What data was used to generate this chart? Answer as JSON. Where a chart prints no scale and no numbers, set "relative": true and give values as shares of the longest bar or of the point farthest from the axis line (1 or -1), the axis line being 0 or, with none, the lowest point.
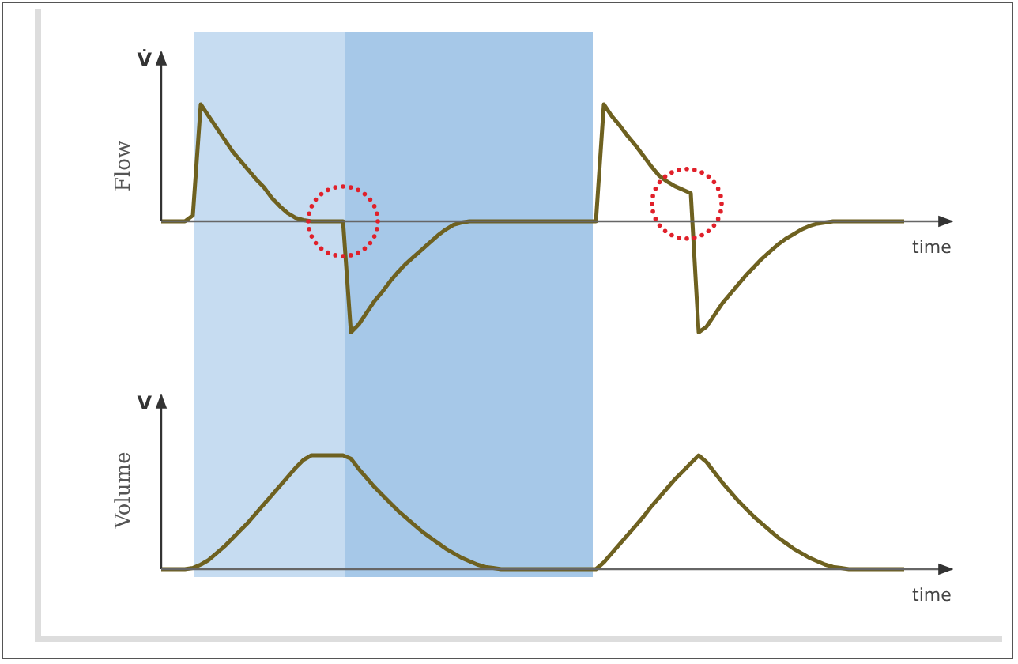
{
  "chart_data": [
    {
      "type": "line",
      "relative": true,
      "ylabel": "Flow",
      "xlabel": "time",
      "annotations": [
        "V̇"
      ],
      "tick_labels": false,
      "categories": [
        null,
        null,
        null,
        null,
        null,
        null,
        null,
        null,
        null,
        null,
        null,
        null,
        null,
        null,
        null,
        null,
        null,
        null,
        null,
        null,
        null,
        null,
        null,
        null,
        null,
        null,
        null,
        null,
        null,
        null,
        null,
        null,
        null,
        null,
        null,
        null,
        null,
        null,
        null,
        null,
        null,
        null,
        null,
        null,
        null,
        null,
        null,
        null,
        null,
        null,
        null,
        null,
        null,
        null,
        null,
        null,
        null,
        null,
        null,
        null,
        null,
        null,
        null,
        null,
        null,
        null,
        null,
        null,
        null,
        null,
        null,
        null,
        null,
        null,
        null,
        null,
        null,
        null,
        null,
        null,
        null,
        null,
        null,
        null,
        null,
        null,
        null,
        null,
        null,
        null,
        null,
        null,
        null,
        null,
        null
      ],
      "series": [
        {
          "color": "#6e6120",
          "values": [
            0,
            0,
            0,
            0,
            0.05,
            1,
            0.9,
            0.8,
            0.7,
            0.6,
            0.52,
            0.44,
            0.36,
            0.29,
            0.2,
            0.13,
            0.07,
            0.03,
            0.01,
            0,
            0,
            0,
            0,
            0,
            -0.95,
            -0.88,
            -0.78,
            -0.68,
            -0.6,
            -0.51,
            -0.43,
            -0.36,
            -0.3,
            -0.24,
            -0.18,
            -0.12,
            -0.07,
            -0.03,
            -0.01,
            0,
            0,
            0,
            0,
            0,
            0,
            0,
            0,
            0,
            0,
            0,
            0,
            0,
            0,
            0,
            0,
            0,
            1,
            0.9,
            0.82,
            0.73,
            0.65,
            0.56,
            0.47,
            0.39,
            0.34,
            0.3,
            0.27,
            0.24,
            -0.95,
            -0.9,
            -0.8,
            -0.7,
            -0.62,
            -0.54,
            -0.46,
            -0.39,
            -0.32,
            -0.26,
            -0.2,
            -0.15,
            -0.11,
            -0.07,
            -0.04,
            -0.02,
            -0.01,
            0,
            0,
            0,
            0,
            0,
            0,
            0,
            0,
            0,
            0
          ]
        }
      ]
    },
    {
      "type": "line",
      "relative": true,
      "ylabel": "Volume",
      "xlabel": "time",
      "annotations": [
        "V"
      ],
      "tick_labels": false,
      "categories": [
        null,
        null,
        null,
        null,
        null,
        null,
        null,
        null,
        null,
        null,
        null,
        null,
        null,
        null,
        null,
        null,
        null,
        null,
        null,
        null,
        null,
        null,
        null,
        null,
        null,
        null,
        null,
        null,
        null,
        null,
        null,
        null,
        null,
        null,
        null,
        null,
        null,
        null,
        null,
        null,
        null,
        null,
        null,
        null,
        null,
        null,
        null,
        null,
        null,
        null,
        null,
        null,
        null,
        null,
        null,
        null,
        null,
        null,
        null,
        null,
        null,
        null,
        null,
        null,
        null,
        null,
        null,
        null,
        null,
        null,
        null,
        null,
        null,
        null,
        null,
        null,
        null,
        null,
        null,
        null,
        null,
        null,
        null,
        null,
        null,
        null,
        null,
        null,
        null,
        null,
        null,
        null,
        null,
        null,
        null
      ],
      "series": [
        {
          "color": "#6e6120",
          "values": [
            0,
            0,
            0,
            0,
            0.01,
            0.04,
            0.08,
            0.14,
            0.2,
            0.27,
            0.34,
            0.41,
            0.49,
            0.57,
            0.65,
            0.73,
            0.81,
            0.89,
            0.96,
            1,
            1,
            1,
            1,
            1,
            0.97,
            0.88,
            0.8,
            0.72,
            0.65,
            0.58,
            0.51,
            0.45,
            0.39,
            0.33,
            0.28,
            0.23,
            0.18,
            0.14,
            0.1,
            0.07,
            0.04,
            0.02,
            0.01,
            0,
            0,
            0,
            0,
            0,
            0,
            0,
            0,
            0,
            0,
            0,
            0,
            0,
            0.06,
            0.14,
            0.22,
            0.3,
            0.38,
            0.46,
            0.55,
            0.63,
            0.71,
            0.79,
            0.86,
            0.93,
            1,
            0.94,
            0.85,
            0.76,
            0.68,
            0.6,
            0.53,
            0.46,
            0.4,
            0.34,
            0.28,
            0.23,
            0.18,
            0.14,
            0.1,
            0.07,
            0.04,
            0.02,
            0.01,
            0,
            0,
            0,
            0,
            0,
            0,
            0,
            0
          ]
        }
      ]
    }
  ]
}
